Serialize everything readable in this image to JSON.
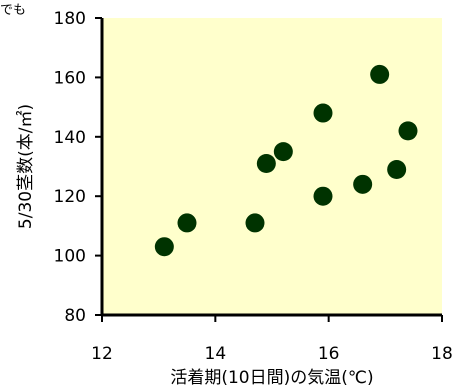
{
  "corner_fragment": "でも",
  "chart_data": {
    "type": "scatter",
    "xlabel": "活着期(10日間)の気温(℃)",
    "ylabel": "5/30茎数(本/㎡)",
    "xlim": [
      12,
      18
    ],
    "ylim": [
      80,
      180
    ],
    "xticks": [
      12,
      14,
      16,
      18
    ],
    "yticks": [
      80,
      100,
      120,
      140,
      160,
      180
    ],
    "grid": false,
    "legend": "none",
    "colors": {
      "plot_background": "#FFFFCC",
      "marker": "#003300",
      "axis": "#000000"
    },
    "points": [
      {
        "x": 13.1,
        "y": 103
      },
      {
        "x": 13.5,
        "y": 111
      },
      {
        "x": 14.7,
        "y": 111
      },
      {
        "x": 14.9,
        "y": 131
      },
      {
        "x": 15.2,
        "y": 135
      },
      {
        "x": 15.9,
        "y": 120
      },
      {
        "x": 15.9,
        "y": 148
      },
      {
        "x": 16.6,
        "y": 124
      },
      {
        "x": 16.9,
        "y": 161
      },
      {
        "x": 17.2,
        "y": 129
      },
      {
        "x": 17.4,
        "y": 142
      }
    ]
  }
}
